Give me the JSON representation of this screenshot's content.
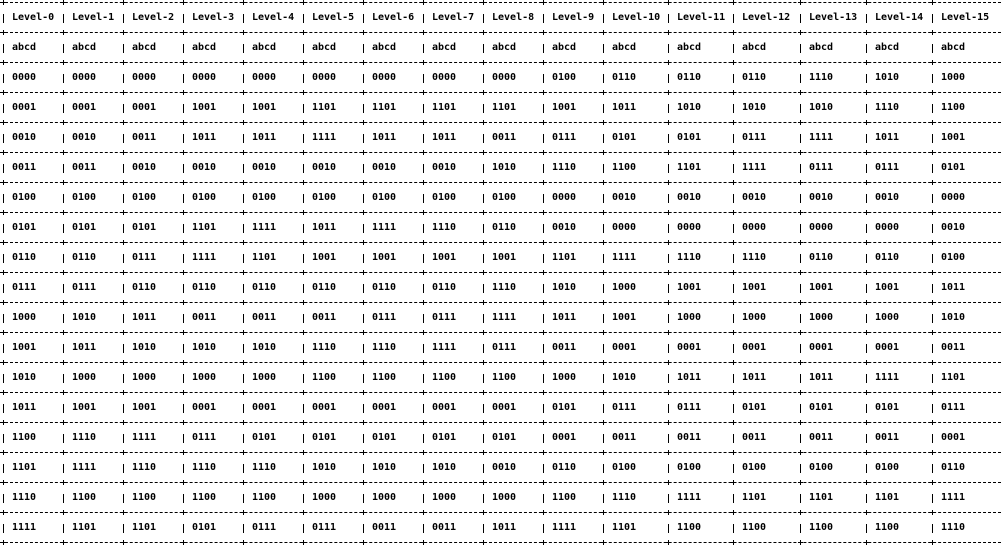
{
  "table": {
    "headers": [
      "Level-0",
      "Level-1",
      "Level-2",
      "Level-3",
      "Level-4",
      "Level-5",
      "Level-6",
      "Level-7",
      "Level-8",
      "Level-9",
      "Level-10",
      "Level-11",
      "Level-12",
      "Level-13",
      "Level-14",
      "Level-15"
    ],
    "rows": [
      [
        "abcd",
        "abcd",
        "abcd",
        "abcd",
        "abcd",
        "abcd",
        "abcd",
        "abcd",
        "abcd",
        "abcd",
        "abcd",
        "abcd",
        "abcd",
        "abcd",
        "abcd",
        "abcd"
      ],
      [
        "0000",
        "0000",
        "0000",
        "0000",
        "0000",
        "0000",
        "0000",
        "0000",
        "0000",
        "0100",
        "0110",
        "0110",
        "0110",
        "1110",
        "1010",
        "1000"
      ],
      [
        "0001",
        "0001",
        "0001",
        "1001",
        "1001",
        "1101",
        "1101",
        "1101",
        "1101",
        "1001",
        "1011",
        "1010",
        "1010",
        "1010",
        "1110",
        "1100"
      ],
      [
        "0010",
        "0010",
        "0011",
        "1011",
        "1011",
        "1111",
        "1011",
        "1011",
        "0011",
        "0111",
        "0101",
        "0101",
        "0111",
        "1111",
        "1011",
        "1001"
      ],
      [
        "0011",
        "0011",
        "0010",
        "0010",
        "0010",
        "0010",
        "0010",
        "0010",
        "1010",
        "1110",
        "1100",
        "1101",
        "1111",
        "0111",
        "0111",
        "0101"
      ],
      [
        "0100",
        "0100",
        "0100",
        "0100",
        "0100",
        "0100",
        "0100",
        "0100",
        "0100",
        "0000",
        "0010",
        "0010",
        "0010",
        "0010",
        "0010",
        "0000"
      ],
      [
        "0101",
        "0101",
        "0101",
        "1101",
        "1111",
        "1011",
        "1111",
        "1110",
        "0110",
        "0010",
        "0000",
        "0000",
        "0000",
        "0000",
        "0000",
        "0010"
      ],
      [
        "0110",
        "0110",
        "0111",
        "1111",
        "1101",
        "1001",
        "1001",
        "1001",
        "1001",
        "1101",
        "1111",
        "1110",
        "1110",
        "0110",
        "0110",
        "0100"
      ],
      [
        "0111",
        "0111",
        "0110",
        "0110",
        "0110",
        "0110",
        "0110",
        "0110",
        "1110",
        "1010",
        "1000",
        "1001",
        "1001",
        "1001",
        "1001",
        "1011"
      ],
      [
        "1000",
        "1010",
        "1011",
        "0011",
        "0011",
        "0011",
        "0111",
        "0111",
        "1111",
        "1011",
        "1001",
        "1000",
        "1000",
        "1000",
        "1000",
        "1010"
      ],
      [
        "1001",
        "1011",
        "1010",
        "1010",
        "1010",
        "1110",
        "1110",
        "1111",
        "0111",
        "0011",
        "0001",
        "0001",
        "0001",
        "0001",
        "0001",
        "0011"
      ],
      [
        "1010",
        "1000",
        "1000",
        "1000",
        "1000",
        "1100",
        "1100",
        "1100",
        "1100",
        "1000",
        "1010",
        "1011",
        "1011",
        "1011",
        "1111",
        "1101"
      ],
      [
        "1011",
        "1001",
        "1001",
        "0001",
        "0001",
        "0001",
        "0001",
        "0001",
        "0001",
        "0101",
        "0111",
        "0111",
        "0101",
        "0101",
        "0101",
        "0111"
      ],
      [
        "1100",
        "1110",
        "1111",
        "0111",
        "0101",
        "0101",
        "0101",
        "0101",
        "0101",
        "0001",
        "0011",
        "0011",
        "0011",
        "0011",
        "0011",
        "0001"
      ],
      [
        "1101",
        "1111",
        "1110",
        "1110",
        "1110",
        "1010",
        "1010",
        "1010",
        "0010",
        "0110",
        "0100",
        "0100",
        "0100",
        "0100",
        "0100",
        "0110"
      ],
      [
        "1110",
        "1100",
        "1100",
        "1100",
        "1100",
        "1000",
        "1000",
        "1000",
        "1000",
        "1100",
        "1110",
        "1111",
        "1101",
        "1101",
        "1101",
        "1111"
      ],
      [
        "1111",
        "1101",
        "1101",
        "0101",
        "0111",
        "0111",
        "0011",
        "0011",
        "1011",
        "1111",
        "1101",
        "1100",
        "1100",
        "1100",
        "1100",
        "1110"
      ]
    ]
  }
}
